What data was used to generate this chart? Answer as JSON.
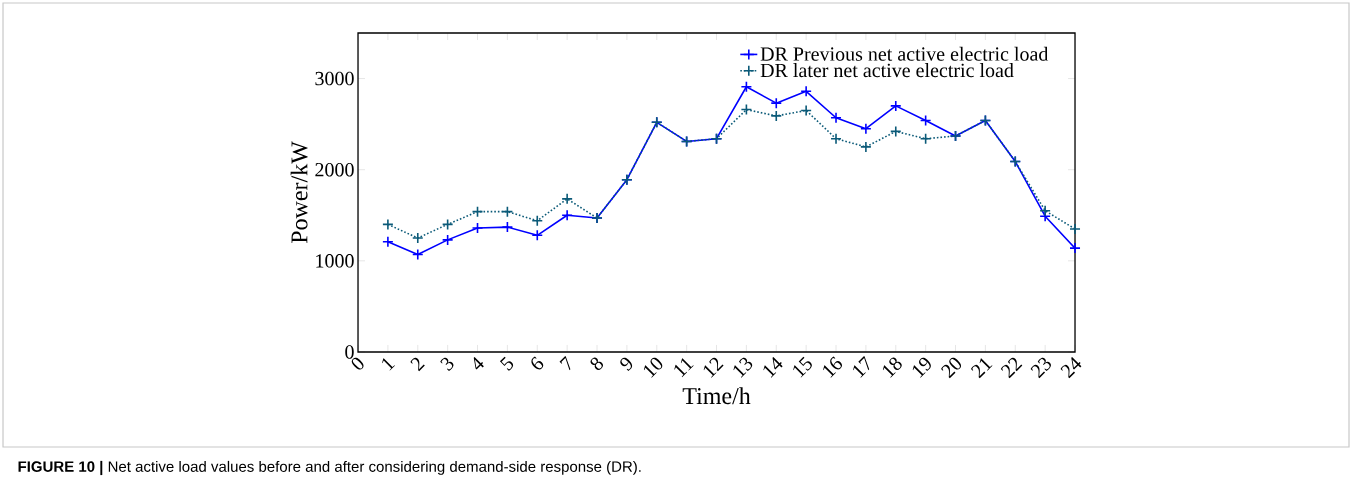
{
  "chart_data": {
    "type": "line",
    "xlabel": "Time/h",
    "ylabel": "Power/kW",
    "x": [
      1,
      2,
      3,
      4,
      5,
      6,
      7,
      8,
      9,
      10,
      11,
      12,
      13,
      14,
      15,
      16,
      17,
      18,
      19,
      20,
      21,
      22,
      23,
      24
    ],
    "series": [
      {
        "name": "DR Previous net active electric load",
        "color": "#0000ff",
        "line_style": "solid",
        "values": [
          1210,
          1070,
          1230,
          1360,
          1370,
          1280,
          1500,
          1470,
          1890,
          2520,
          2310,
          2340,
          2910,
          2730,
          2860,
          2570,
          2450,
          2700,
          2540,
          2370,
          2540,
          2090,
          1490,
          1140
        ]
      },
      {
        "name": "DR later net active electric load",
        "color": "#0b5a78",
        "line_style": "dotted",
        "values": [
          1400,
          1250,
          1400,
          1540,
          1540,
          1440,
          1680,
          1470,
          1890,
          2520,
          2310,
          2340,
          2660,
          2590,
          2650,
          2340,
          2250,
          2420,
          2340,
          2370,
          2540,
          2090,
          1550,
          1350
        ]
      }
    ],
    "xlim": [
      0,
      24
    ],
    "xticks": [
      0,
      1,
      2,
      3,
      4,
      5,
      6,
      7,
      8,
      9,
      10,
      11,
      12,
      13,
      14,
      15,
      16,
      17,
      18,
      19,
      20,
      21,
      22,
      23,
      24
    ],
    "ylim": [
      0,
      3500
    ],
    "yticks": [
      0,
      1000,
      2000,
      3000
    ],
    "marker": "cross",
    "legend": "top right",
    "grid": false,
    "annotations": [
      "**FIGURE 10 |** Net active load values before and after considering demand-side response (DR)."
    ]
  }
}
